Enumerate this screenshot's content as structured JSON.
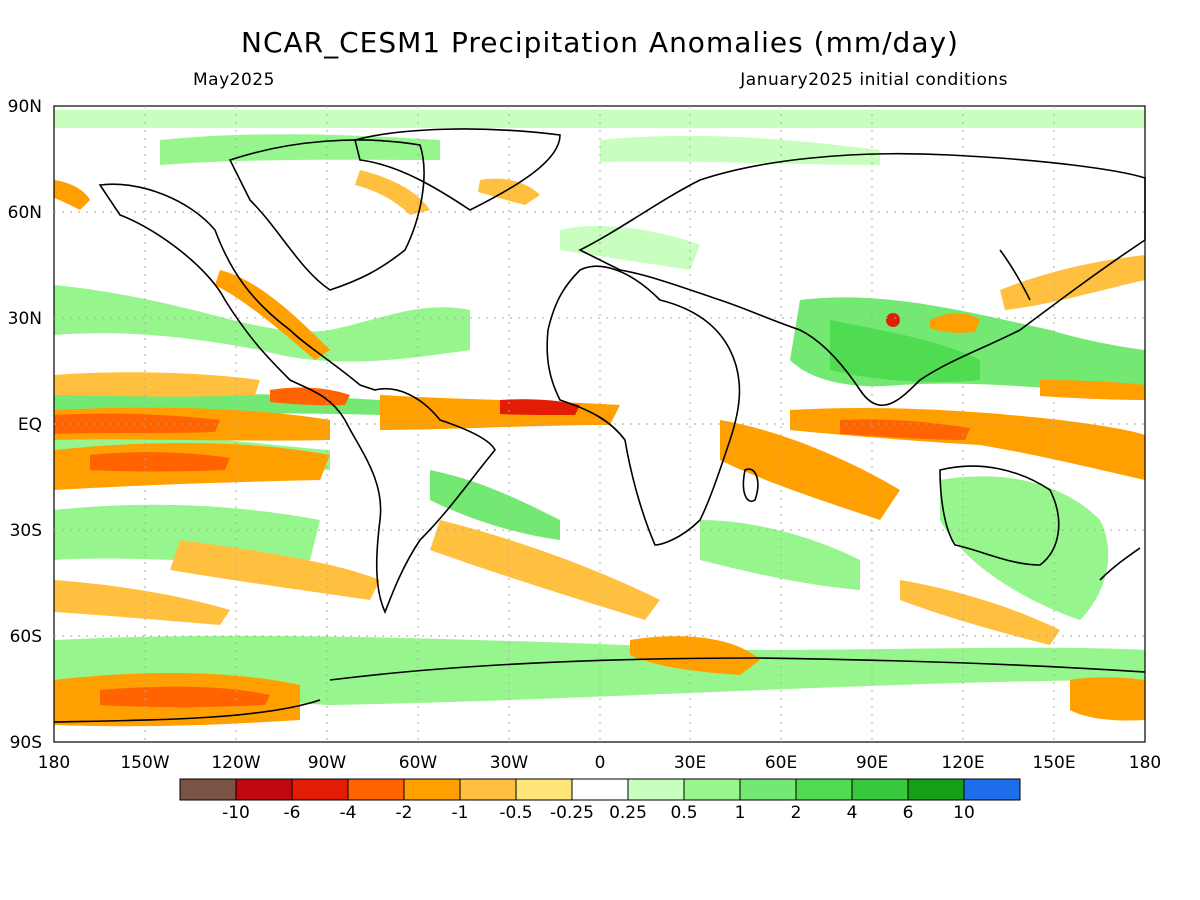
{
  "header": {
    "title": "NCAR_CESM1 Precipitation Anomalies (mm/day)",
    "valid_month": "May2025",
    "init_conditions": "January2025 initial conditions"
  },
  "axes": {
    "lat_labels": [
      "90N",
      "60N",
      "30N",
      "EQ",
      "30S",
      "60S",
      "90S"
    ],
    "lon_labels": [
      "180",
      "150W",
      "120W",
      "90W",
      "60W",
      "30W",
      "0",
      "30E",
      "60E",
      "90E",
      "120E",
      "150E",
      "180"
    ]
  },
  "colorbar": {
    "colors": [
      "#7b5344",
      "#c1070f",
      "#e21c05",
      "#ff6400",
      "#ffa000",
      "#ffc040",
      "#ffe478",
      "#ffffff",
      "#c8ffbe",
      "#96f58c",
      "#73e873",
      "#50dc50",
      "#37c83c",
      "#14a014",
      "#1e6eeb"
    ],
    "labels": [
      "-10",
      "-6",
      "-4",
      "-2",
      "-1",
      "-0.5",
      "-0.25",
      "0.25",
      "0.5",
      "1",
      "2",
      "4",
      "6",
      "10"
    ]
  }
}
